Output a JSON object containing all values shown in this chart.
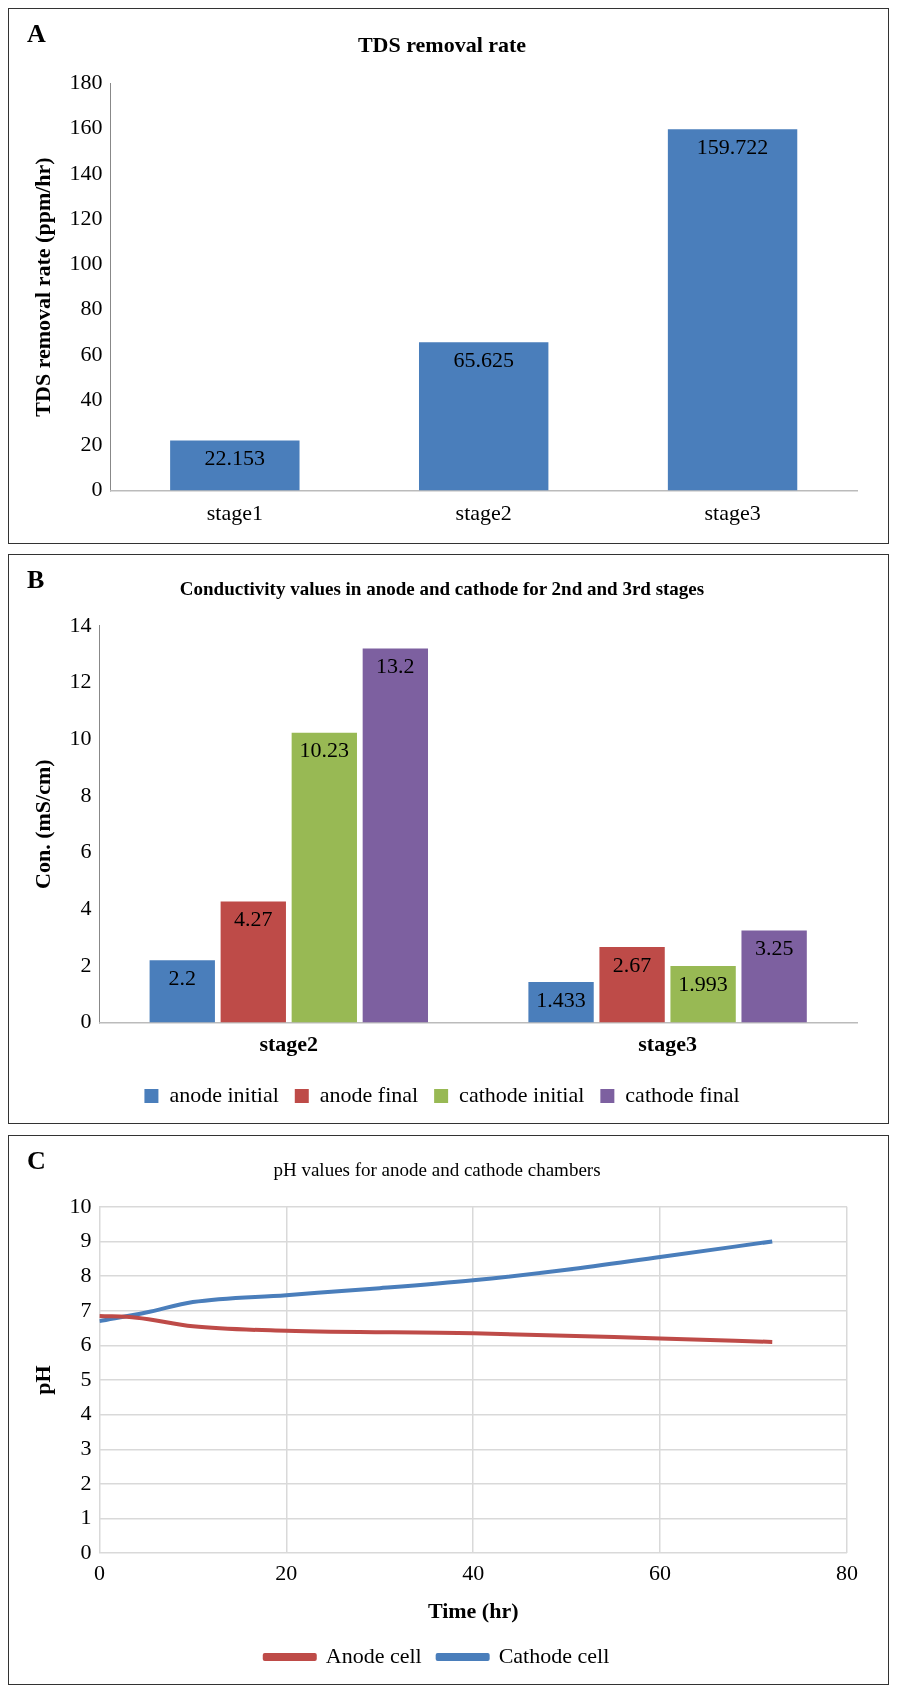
{
  "chart_data": [
    {
      "type": "bar",
      "title": "TDS removal rate",
      "annotations": [
        "A"
      ],
      "ylabel": "TDS removal rate (ppm/hr)",
      "categories": [
        "stage1",
        "stage2",
        "stage3"
      ],
      "values": [
        22.153,
        65.625,
        159.722
      ],
      "color": "#4a7ebb",
      "ylim": [
        0,
        180
      ],
      "yticks": [
        0,
        20,
        40,
        60,
        80,
        100,
        120,
        140,
        160,
        180
      ],
      "data_labels": true,
      "grid": false,
      "legend": false
    },
    {
      "type": "bar",
      "title": "Conductivity values in anode and cathode for 2nd and 3rd stages",
      "annotations": [
        "B"
      ],
      "ylabel": "Con. (mS/cm)",
      "categories": [
        "stage2",
        "stage3"
      ],
      "series": [
        {
          "name": "anode initial",
          "color": "#4a7ebb",
          "values": [
            2.2,
            1.433
          ]
        },
        {
          "name": "anode final",
          "color": "#be4b48",
          "values": [
            4.27,
            2.67
          ]
        },
        {
          "name": "cathode initial",
          "color": "#98b954",
          "values": [
            10.23,
            1.993
          ]
        },
        {
          "name": "cathode final",
          "color": "#7d60a0",
          "values": [
            13.2,
            3.25
          ]
        }
      ],
      "ylim": [
        0,
        14
      ],
      "yticks": [
        0,
        2,
        4,
        6,
        8,
        10,
        12,
        14
      ],
      "data_labels": true,
      "grid": false,
      "legend": "bottom"
    },
    {
      "type": "line",
      "title": "pH values for anode and cathode chambers",
      "annotations": [
        "C"
      ],
      "xlabel": "Time (hr)",
      "ylabel": "pH",
      "series": [
        {
          "name": "Anode cell",
          "color": "#be4b48",
          "x": [
            0,
            4,
            10,
            20,
            40,
            60,
            72
          ],
          "values": [
            6.85,
            6.8,
            6.55,
            6.42,
            6.35,
            6.2,
            6.1
          ]
        },
        {
          "name": "Cathode cell",
          "color": "#4a7ebb",
          "x": [
            0,
            5,
            10,
            20,
            30,
            40,
            50,
            60,
            72
          ],
          "values": [
            6.7,
            6.95,
            7.25,
            7.45,
            7.65,
            7.88,
            8.18,
            8.55,
            9.0
          ]
        }
      ],
      "xlim": [
        0,
        80
      ],
      "xticks": [
        0,
        20,
        40,
        60,
        80
      ],
      "ylim": [
        0,
        10
      ],
      "yticks": [
        0,
        1,
        2,
        3,
        4,
        5,
        6,
        7,
        8,
        9,
        10
      ],
      "grid": true,
      "legend": "bottom",
      "marker": "none",
      "line_style": "solid"
    }
  ]
}
